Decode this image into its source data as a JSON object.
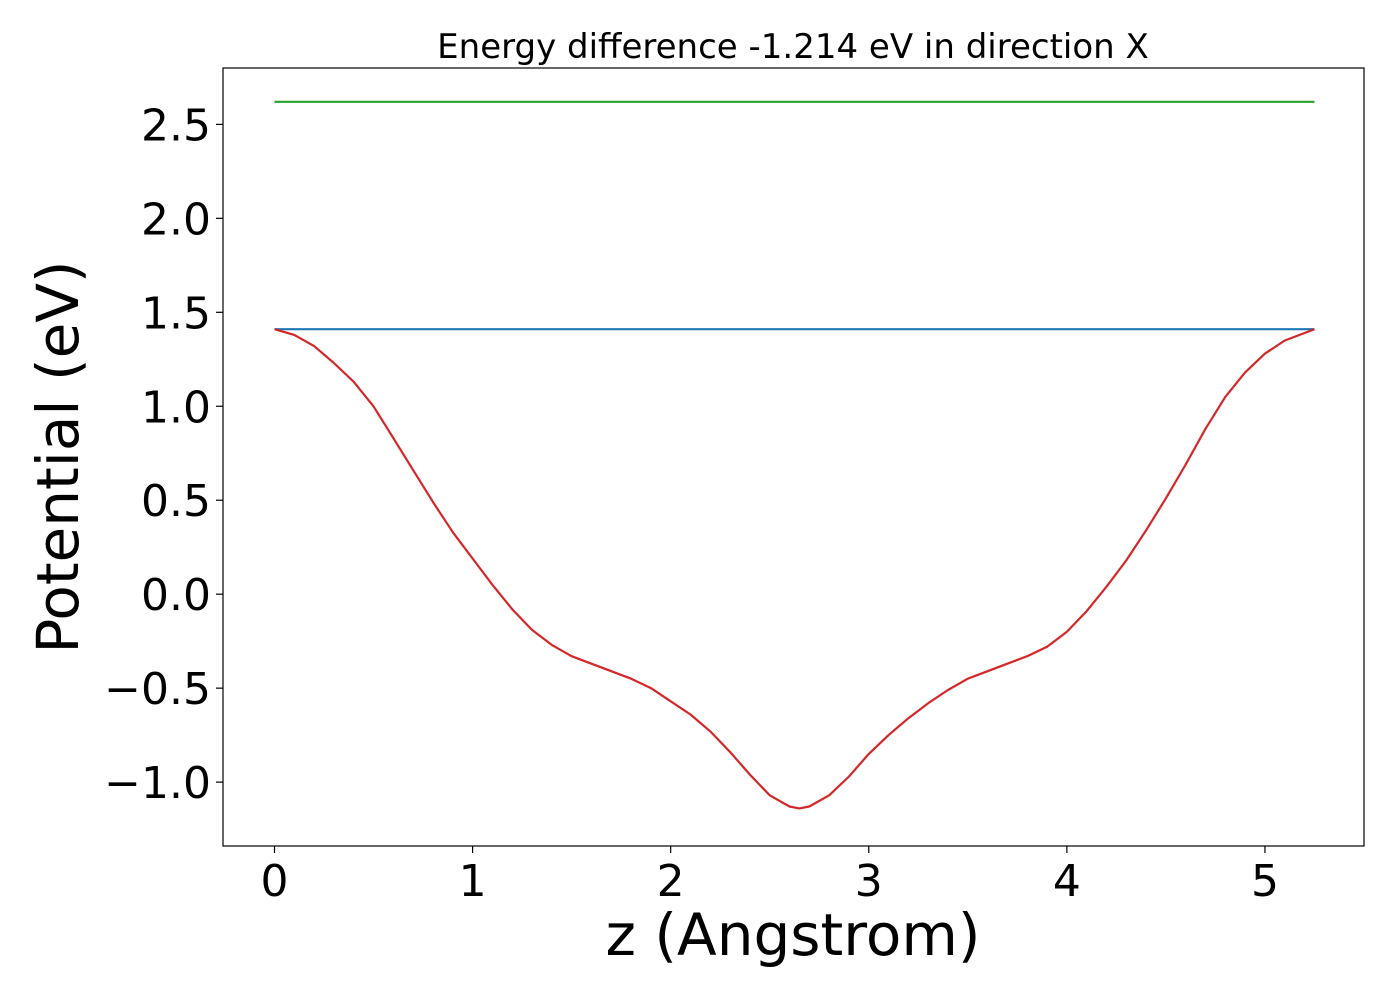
{
  "chart_data": {
    "type": "line",
    "title": "Energy difference -1.214 eV in direction X",
    "xlabel": "z (Angstrom)",
    "ylabel": "Potential (eV)",
    "xlim": [
      -0.26,
      5.5
    ],
    "ylim": [
      -1.34,
      2.8
    ],
    "xticks": [
      0,
      1,
      2,
      3,
      4,
      5
    ],
    "xtick_labels": [
      "0",
      "1",
      "2",
      "3",
      "4",
      "5"
    ],
    "yticks": [
      -1.0,
      -0.5,
      0.0,
      0.5,
      1.0,
      1.5,
      2.0,
      2.5
    ],
    "ytick_labels": [
      "−1.0",
      "−0.5",
      "0.0",
      "0.5",
      "1.0",
      "1.5",
      "2.0",
      "2.5"
    ],
    "grid": false,
    "series": [
      {
        "color": "#2ca02c",
        "x": [
          0,
          5.25
        ],
        "y": [
          2.62,
          2.62
        ]
      },
      {
        "color": "#1f77b4",
        "x": [
          0,
          5.25
        ],
        "y": [
          1.41,
          1.41
        ]
      },
      {
        "color": "#d62728",
        "x": [
          0,
          0.1,
          0.2,
          0.3,
          0.4,
          0.5,
          0.6,
          0.7,
          0.8,
          0.9,
          1.0,
          1.1,
          1.2,
          1.3,
          1.4,
          1.5,
          1.6,
          1.7,
          1.8,
          1.9,
          2.0,
          2.1,
          2.2,
          2.3,
          2.4,
          2.5,
          2.6,
          2.65,
          2.7,
          2.8,
          2.9,
          3.0,
          3.1,
          3.2,
          3.3,
          3.4,
          3.5,
          3.6,
          3.7,
          3.8,
          3.9,
          4.0,
          4.1,
          4.2,
          4.3,
          4.4,
          4.5,
          4.6,
          4.7,
          4.8,
          4.9,
          5.0,
          5.1,
          5.2,
          5.25
        ],
        "y": [
          1.41,
          1.38,
          1.32,
          1.23,
          1.13,
          1.0,
          0.83,
          0.66,
          0.49,
          0.33,
          0.19,
          0.05,
          -0.08,
          -0.19,
          -0.27,
          -0.33,
          -0.37,
          -0.41,
          -0.45,
          -0.5,
          -0.57,
          -0.64,
          -0.73,
          -0.84,
          -0.96,
          -1.07,
          -1.13,
          -1.14,
          -1.13,
          -1.07,
          -0.97,
          -0.85,
          -0.75,
          -0.66,
          -0.58,
          -0.51,
          -0.45,
          -0.41,
          -0.37,
          -0.33,
          -0.28,
          -0.2,
          -0.09,
          0.04,
          0.18,
          0.34,
          0.51,
          0.69,
          0.88,
          1.05,
          1.18,
          1.28,
          1.35,
          1.39,
          1.41
        ]
      }
    ]
  }
}
